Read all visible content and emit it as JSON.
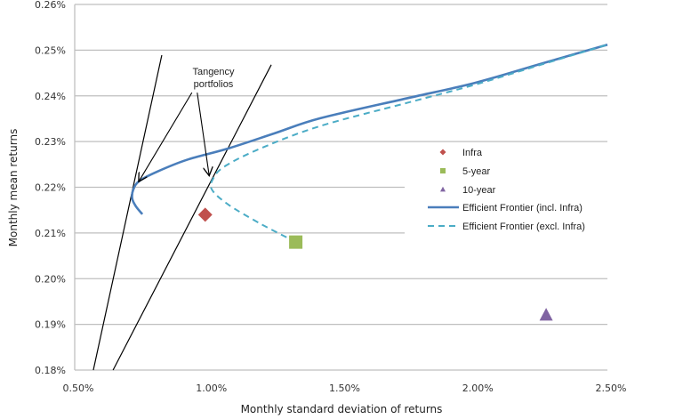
{
  "chart_data": {
    "type": "scatter",
    "xlabel": "Monthly standard deviation of returns",
    "ylabel": "Monthly mean returns",
    "xlim": [
      0.5,
      2.5
    ],
    "ylim": [
      0.18,
      0.26
    ],
    "x_unit": "%",
    "y_unit": "%",
    "x_ticks": [
      "0.50%",
      "1.00%",
      "1.50%",
      "2.00%",
      "2.50%"
    ],
    "x_tick_values": [
      0.5,
      1.0,
      1.5,
      2.0,
      2.5
    ],
    "y_ticks": [
      "0.18%",
      "0.19%",
      "0.20%",
      "0.21%",
      "0.22%",
      "0.23%",
      "0.24%",
      "0.25%",
      "0.26%"
    ],
    "y_tick_values": [
      0.18,
      0.19,
      0.2,
      0.21,
      0.22,
      0.23,
      0.24,
      0.25,
      0.26
    ],
    "grid": "horizontal",
    "legend_position": "right",
    "points": [
      {
        "name": "Infra",
        "x": 0.99,
        "y": 0.214,
        "marker": "diamond",
        "color": "#c0504d"
      },
      {
        "name": "5-year",
        "x": 1.33,
        "y": 0.208,
        "marker": "square",
        "color": "#9bbb59"
      },
      {
        "name": "10-year",
        "x": 2.27,
        "y": 0.192,
        "marker": "triangle",
        "color": "#8064a2"
      }
    ],
    "series": [
      {
        "name": "Efficient Frontier (incl. Infra)",
        "style": "solid",
        "color": "#4a7ebb",
        "x": [
          0.754,
          0.73,
          0.716,
          0.72,
          0.743,
          0.809,
          0.921,
          1.077,
          1.25,
          1.422,
          1.75,
          2.0,
          2.25,
          2.5
        ],
        "y": [
          0.2141,
          0.2158,
          0.2175,
          0.2195,
          0.2214,
          0.2234,
          0.226,
          0.2285,
          0.2318,
          0.2351,
          0.2395,
          0.2428,
          0.247,
          0.2512
        ]
      },
      {
        "name": "Efficient Frontier (excl. Infra)",
        "style": "dashed",
        "color": "#4bacc6",
        "x": [
          1.331,
          1.198,
          1.077,
          1.015,
          1.021,
          1.064,
          1.198,
          1.422,
          1.75,
          2.0,
          2.25,
          2.5
        ],
        "y": [
          0.208,
          0.212,
          0.2162,
          0.2195,
          0.222,
          0.2246,
          0.2285,
          0.2334,
          0.2385,
          0.2424,
          0.2468,
          0.2512
        ]
      }
    ],
    "tangent_lines": [
      {
        "x": [
          0.57,
          0.827
        ],
        "y": [
          0.18,
          0.2489
        ],
        "color": "#000000"
      },
      {
        "x": [
          0.644,
          1.238
        ],
        "y": [
          0.18,
          0.2468
        ],
        "color": "#000000"
      }
    ],
    "annotation": {
      "lines": [
        "Tangency",
        "portfolios"
      ],
      "arrows": [
        {
          "from": [
            0.94,
            0.2407
          ],
          "to": [
            0.74,
            0.2212
          ]
        },
        {
          "from": [
            0.96,
            0.2407
          ],
          "to": [
            1.005,
            0.2225
          ]
        }
      ]
    },
    "legend": [
      "Infra",
      "5-year",
      "10-year",
      "Efficient Frontier (incl. Infra)",
      "Efficient Frontier (excl. Infra)"
    ],
    "colors": {
      "grid": "#bfbfbf",
      "axis": "#bfbfbf"
    }
  }
}
